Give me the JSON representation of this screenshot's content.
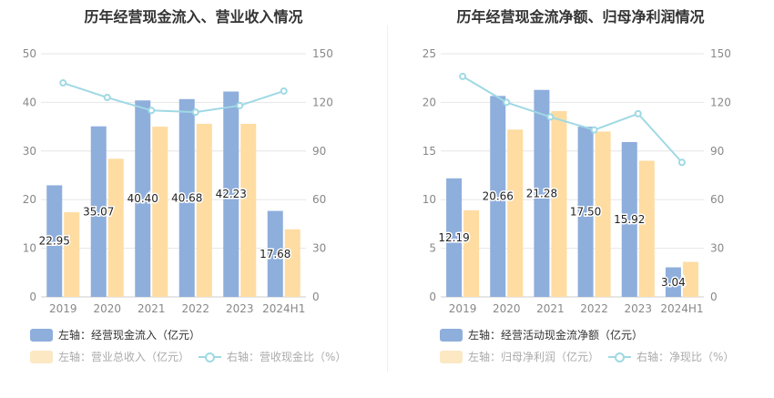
{
  "charts": [
    {
      "title": "历年经营现金流入、营业收入情况",
      "legend": {
        "bar1": "左轴：经营现金流入（亿元）",
        "bar2": "左轴：营业总收入（亿元）",
        "line": "右轴：营收现金比（%）"
      }
    },
    {
      "title": "历年经营现金流净额、归母净利润情况",
      "legend": {
        "bar1": "左轴：经营活动现金流净额（亿元）",
        "bar2": "左轴：归母净利润（亿元）",
        "line": "右轴：净现比（%）"
      }
    }
  ],
  "colors": {
    "bar1": "#8eaedc",
    "bar2": "#fedca2",
    "line": "#9fd9e4",
    "grid": "#e6e6e6",
    "axisText": "#888888"
  },
  "chart_data": [
    {
      "type": "bar",
      "title": "历年经营现金流入、营业收入情况",
      "categories": [
        "2019",
        "2020",
        "2021",
        "2022",
        "2023",
        "2024H1"
      ],
      "left_axis": {
        "ticks": [
          "0",
          "10",
          "20",
          "30",
          "40",
          "50"
        ],
        "ylim": [
          0,
          50
        ]
      },
      "right_axis": {
        "ticks": [
          "0",
          "30",
          "60",
          "90",
          "120",
          "150"
        ],
        "ylim": [
          0,
          150
        ]
      },
      "series": [
        {
          "name": "左轴：经营现金流入（亿元）",
          "axis": "left",
          "kind": "bar",
          "values": [
            22.95,
            35.07,
            40.4,
            40.68,
            42.23,
            17.68
          ],
          "labels": [
            "22.95",
            "35.07",
            "40.40",
            "40.68",
            "42.23",
            "17.68"
          ]
        },
        {
          "name": "左轴：营业总收入（亿元）",
          "axis": "left",
          "kind": "bar",
          "values": [
            17.4,
            28.4,
            35.0,
            35.6,
            35.6,
            13.9
          ]
        },
        {
          "name": "右轴：营收现金比（%）",
          "axis": "right",
          "kind": "line",
          "values": [
            132,
            123,
            115,
            114,
            118,
            127
          ]
        }
      ]
    },
    {
      "type": "bar",
      "title": "历年经营现金流净额、归母净利润情况",
      "categories": [
        "2019",
        "2020",
        "2021",
        "2022",
        "2023",
        "2024H1"
      ],
      "left_axis": {
        "ticks": [
          "0",
          "5",
          "10",
          "15",
          "20",
          "25"
        ],
        "ylim": [
          0,
          25
        ]
      },
      "right_axis": {
        "ticks": [
          "0",
          "30",
          "60",
          "90",
          "120",
          "150"
        ],
        "ylim": [
          0,
          150
        ]
      },
      "series": [
        {
          "name": "左轴：经营活动现金流净额（亿元）",
          "axis": "left",
          "kind": "bar",
          "values": [
            12.19,
            20.66,
            21.28,
            17.5,
            15.92,
            3.04
          ],
          "labels": [
            "12.19",
            "20.66",
            "21.28",
            "17.50",
            "15.92",
            "3.04"
          ]
        },
        {
          "name": "左轴：归母净利润（亿元）",
          "axis": "left",
          "kind": "bar",
          "values": [
            8.9,
            17.2,
            19.1,
            17.0,
            14.0,
            3.6
          ]
        },
        {
          "name": "右轴：净现比（%）",
          "axis": "right",
          "kind": "line",
          "values": [
            136,
            120,
            111,
            103,
            113,
            83
          ]
        }
      ]
    }
  ]
}
